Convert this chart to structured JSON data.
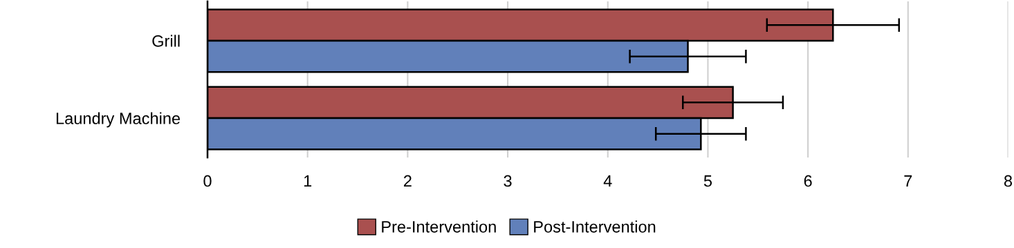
{
  "chart_data": {
    "type": "bar",
    "orientation": "horizontal",
    "categories": [
      "Grill",
      "Laundry Machine"
    ],
    "series": [
      {
        "name": "Pre-Intervention",
        "color": "#a9504f",
        "values": [
          6.25,
          5.25
        ],
        "errors": [
          0.66,
          0.5
        ]
      },
      {
        "name": "Post-Intervention",
        "color": "#6180ba",
        "values": [
          4.8,
          4.93
        ],
        "errors": [
          0.58,
          0.45
        ]
      }
    ],
    "xlim": [
      0,
      8
    ],
    "xticks": [
      0,
      1,
      2,
      3,
      4,
      5,
      6,
      7,
      8
    ],
    "grid": "x",
    "legend": "bottom"
  }
}
